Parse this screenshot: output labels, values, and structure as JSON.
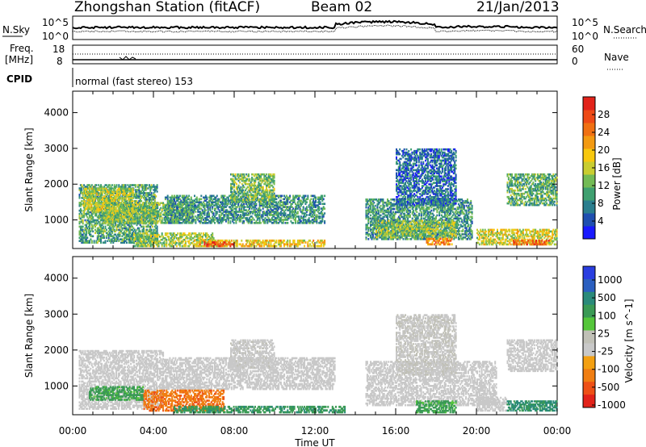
{
  "header": {
    "station": "Zhongshan Station (fitACF)",
    "beam": "Beam 02",
    "date": "21/Jan/2013"
  },
  "summary_panel": {
    "nsky_label": "N.Sky",
    "nsearch_label": "N.Search",
    "left_ticks_top": "10^5",
    "left_ticks_bottom": "10^0",
    "right_ticks_top": "10^5",
    "right_ticks_bottom": "10^0",
    "freq_label_1": "Freq.",
    "freq_label_2": "[MHz]",
    "freq_ticks": [
      "18",
      "8"
    ],
    "nave_label": "Nave",
    "nave_ticks": [
      "60",
      "0"
    ],
    "cpid_label": "CPID",
    "cpid_text": "normal (fast stereo) 153"
  },
  "chart_data": [
    {
      "type": "heatmap",
      "title": "",
      "xlabel": "Time UT",
      "ylabel": "Slant Range [km]",
      "x_ticks": [
        "00:00",
        "04:00",
        "08:00",
        "12:00",
        "16:00",
        "20:00",
        "00:00"
      ],
      "y_ticks": [
        1000,
        2000,
        3000,
        4000
      ],
      "ylim": [
        200,
        4600
      ],
      "colorbar": {
        "label": "Power [dB]",
        "ticks": [
          4,
          8,
          12,
          16,
          20,
          24,
          28
        ],
        "colors": [
          "#1a1aff",
          "#1f4fb0",
          "#2a7e8e",
          "#3fa070",
          "#73bb55",
          "#c9cd30",
          "#f7c80f",
          "#f39a12",
          "#f07012",
          "#ee4a16",
          "#e2231a"
        ]
      },
      "regions": [
        {
          "t0": 0.3,
          "t1": 4.2,
          "r0": 350,
          "r1": 2000,
          "v": 10
        },
        {
          "t0": 0.5,
          "t1": 3.0,
          "r0": 1200,
          "r1": 1900,
          "v": 15
        },
        {
          "t0": 1.5,
          "t1": 6.0,
          "r0": 900,
          "r1": 1500,
          "v": 13
        },
        {
          "t0": 4.5,
          "t1": 12.5,
          "r0": 900,
          "r1": 1700,
          "v": 9
        },
        {
          "t0": 7.8,
          "t1": 10.0,
          "r0": 1500,
          "r1": 2300,
          "v": 12
        },
        {
          "t0": 3.0,
          "t1": 7.0,
          "r0": 250,
          "r1": 650,
          "v": 14
        },
        {
          "t0": 6.0,
          "t1": 12.5,
          "r0": 250,
          "r1": 450,
          "v": 18
        },
        {
          "t0": 6.5,
          "t1": 8.0,
          "r0": 250,
          "r1": 400,
          "v": 26
        },
        {
          "t0": 14.5,
          "t1": 19.8,
          "r0": 450,
          "r1": 1600,
          "v": 9
        },
        {
          "t0": 15.0,
          "t1": 19.0,
          "r0": 500,
          "r1": 1000,
          "v": 13
        },
        {
          "t0": 16.0,
          "t1": 19.0,
          "r0": 1400,
          "r1": 3000,
          "v": 6
        },
        {
          "t0": 17.5,
          "t1": 18.8,
          "r0": 300,
          "r1": 500,
          "v": 22
        },
        {
          "t0": 20.0,
          "t1": 24.0,
          "r0": 300,
          "r1": 750,
          "v": 16
        },
        {
          "t0": 21.8,
          "t1": 23.6,
          "r0": 300,
          "r1": 450,
          "v": 25
        },
        {
          "t0": 21.5,
          "t1": 24.0,
          "r0": 1400,
          "r1": 2300,
          "v": 11
        }
      ]
    },
    {
      "type": "heatmap",
      "title": "",
      "xlabel": "Time UT",
      "ylabel": "Slant Range [km]",
      "x_ticks": [
        "00:00",
        "04:00",
        "08:00",
        "12:00",
        "16:00",
        "20:00",
        "00:00"
      ],
      "y_ticks": [
        1000,
        2000,
        3000,
        4000
      ],
      "ylim": [
        200,
        4600
      ],
      "colorbar": {
        "label": "Velocity [m s^-1]",
        "tick_labels": [
          "1000",
          "500",
          "100",
          "25",
          "-25",
          "-100",
          "-500",
          "-1000"
        ],
        "colors": [
          "#2a3ee0",
          "#2b5fc0",
          "#2a8a7a",
          "#3a9a55",
          "#55c63a",
          "#c0c0b6",
          "#c8c8c8",
          "#f3a012",
          "#f07e12",
          "#ee5016",
          "#e2231a"
        ]
      },
      "regions": [
        {
          "t0": 0.3,
          "t1": 4.5,
          "r0": 350,
          "r1": 2000,
          "v": 0
        },
        {
          "t0": 4.5,
          "t1": 13.0,
          "r0": 900,
          "r1": 1800,
          "v": 0
        },
        {
          "t0": 7.8,
          "t1": 10.0,
          "r0": 1500,
          "r1": 2300,
          "v": 10
        },
        {
          "t0": 0.8,
          "t1": 3.5,
          "r0": 600,
          "r1": 1000,
          "v": 150
        },
        {
          "t0": 3.5,
          "t1": 7.5,
          "r0": 300,
          "r1": 900,
          "v": -200
        },
        {
          "t0": 5.0,
          "t1": 13.5,
          "r0": 250,
          "r1": 450,
          "v": 200
        },
        {
          "t0": 14.5,
          "t1": 21.0,
          "r0": 450,
          "r1": 1700,
          "v": 0
        },
        {
          "t0": 16.0,
          "t1": 19.0,
          "r0": 1300,
          "r1": 3000,
          "v": 20
        },
        {
          "t0": 17.0,
          "t1": 19.0,
          "r0": 250,
          "r1": 600,
          "v": 150
        },
        {
          "t0": 20.0,
          "t1": 21.5,
          "r0": 300,
          "r1": 700,
          "v": 0
        },
        {
          "t0": 21.5,
          "t1": 24.0,
          "r0": 300,
          "r1": 600,
          "v": 300
        },
        {
          "t0": 21.5,
          "t1": 24.0,
          "r0": 1400,
          "r1": 2300,
          "v": 0
        }
      ]
    }
  ]
}
